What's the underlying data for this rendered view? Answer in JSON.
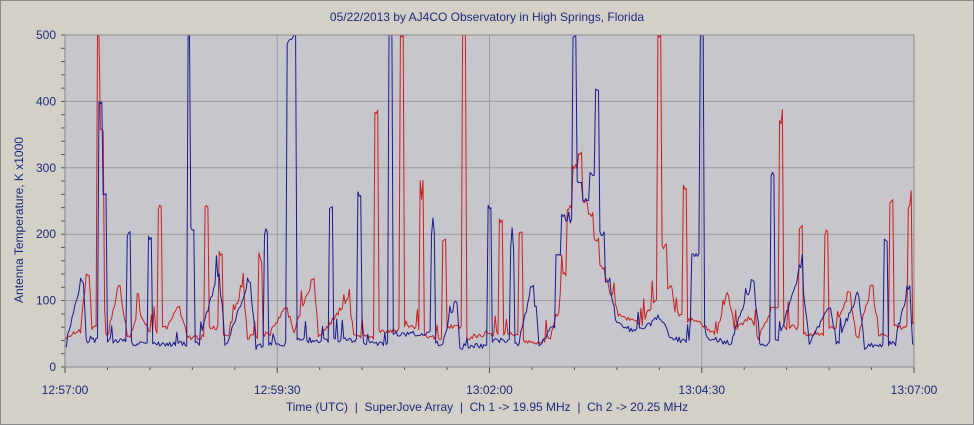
{
  "chart_data": {
    "type": "line",
    "title": "05/22/2013  by  AJ4CO Observatory  in  High Springs, Florida",
    "xlabel": "Time (UTC)  |  SuperJove Array  |  Ch 1 -> 19.95 MHz  |  Ch 2 -> 20.25 MHz",
    "ylabel": "Antenna Temperature, K x1000",
    "x_tick_labels": [
      "12:57:00",
      "12:59:30",
      "13:02:00",
      "13:04:30",
      "13:07:00"
    ],
    "y_tick_labels": [
      "0",
      "100",
      "200",
      "300",
      "400",
      "500"
    ],
    "xlim": [
      "12:57:00",
      "13:07:00"
    ],
    "ylim": [
      0,
      500
    ],
    "grid": true,
    "background_color": "#c6c6cc",
    "grid_color": "#9a9a9a",
    "series": [
      {
        "color": "#c62020",
        "baseline": 40,
        "points": [
          [
            "12:57:00",
            45
          ],
          [
            "12:57:10",
            55
          ],
          [
            "12:57:16",
            140
          ],
          [
            "12:57:20",
            60
          ],
          [
            "12:57:24",
            500
          ],
          [
            "12:57:26",
            355
          ],
          [
            "12:57:30",
            50
          ],
          [
            "12:57:38",
            120
          ],
          [
            "12:57:45",
            45
          ],
          [
            "12:57:52",
            80
          ],
          [
            "12:58:00",
            55
          ],
          [
            "12:58:07",
            240
          ],
          [
            "12:58:12",
            60
          ],
          [
            "12:58:20",
            90
          ],
          [
            "12:58:27",
            45
          ],
          [
            "12:58:40",
            240
          ],
          [
            "12:58:44",
            60
          ],
          [
            "12:58:50",
            170
          ],
          [
            "12:58:55",
            50
          ],
          [
            "12:59:05",
            120
          ],
          [
            "12:59:10",
            45
          ],
          [
            "12:59:18",
            160
          ],
          [
            "12:59:24",
            50
          ],
          [
            "12:59:36",
            90
          ],
          [
            "12:59:42",
            55
          ],
          [
            "12:59:55",
            130
          ],
          [
            "13:00:00",
            45
          ],
          [
            "13:00:20",
            100
          ],
          [
            "13:00:25",
            45
          ],
          [
            "13:00:40",
            385
          ],
          [
            "13:00:44",
            55
          ],
          [
            "13:00:58",
            500
          ],
          [
            "13:01:02",
            60
          ],
          [
            "13:01:12",
            250
          ],
          [
            "13:01:18",
            45
          ],
          [
            "13:01:28",
            190
          ],
          [
            "13:01:34",
            60
          ],
          [
            "13:01:42",
            500
          ],
          [
            "13:01:46",
            45
          ],
          [
            "13:01:58",
            50
          ],
          [
            "13:02:08",
            220
          ],
          [
            "13:02:12",
            50
          ],
          [
            "13:02:22",
            200
          ],
          [
            "13:02:28",
            40
          ],
          [
            "13:02:35",
            35
          ],
          [
            "13:02:42",
            45
          ],
          [
            "13:02:48",
            80
          ],
          [
            "13:02:52",
            140
          ],
          [
            "13:02:56",
            240
          ],
          [
            "13:03:00",
            300
          ],
          [
            "13:03:04",
            320
          ],
          [
            "13:03:08",
            250
          ],
          [
            "13:03:12",
            230
          ],
          [
            "13:03:16",
            190
          ],
          [
            "13:03:20",
            150
          ],
          [
            "13:03:26",
            110
          ],
          [
            "13:03:32",
            80
          ],
          [
            "13:03:40",
            70
          ],
          [
            "13:03:48",
            65
          ],
          [
            "13:03:56",
            100
          ],
          [
            "13:04:00",
            500
          ],
          [
            "13:04:04",
            180
          ],
          [
            "13:04:08",
            120
          ],
          [
            "13:04:12",
            80
          ],
          [
            "13:04:18",
            270
          ],
          [
            "13:04:24",
            70
          ],
          [
            "13:04:32",
            60
          ],
          [
            "13:04:40",
            50
          ],
          [
            "13:04:48",
            110
          ],
          [
            "13:04:54",
            55
          ],
          [
            "13:05:04",
            75
          ],
          [
            "13:05:10",
            45
          ],
          [
            "13:05:20",
            90
          ],
          [
            "13:05:26",
            370
          ],
          [
            "13:05:30",
            60
          ],
          [
            "13:05:40",
            210
          ],
          [
            "13:05:46",
            50
          ],
          [
            "13:05:58",
            200
          ],
          [
            "13:06:04",
            60
          ],
          [
            "13:06:14",
            110
          ],
          [
            "13:06:20",
            45
          ],
          [
            "13:06:30",
            120
          ],
          [
            "13:06:36",
            50
          ],
          [
            "13:06:44",
            250
          ],
          [
            "13:06:50",
            60
          ],
          [
            "13:06:57",
            240
          ],
          [
            "13:07:00",
            65
          ]
        ]
      },
      {
        "color": "#1a1a8c",
        "baseline": 32,
        "points": [
          [
            "12:57:00",
            32
          ],
          [
            "12:57:12",
            130
          ],
          [
            "12:57:16",
            40
          ],
          [
            "12:57:25",
            400
          ],
          [
            "12:57:28",
            260
          ],
          [
            "12:57:32",
            40
          ],
          [
            "12:57:45",
            200
          ],
          [
            "12:57:50",
            35
          ],
          [
            "12:58:00",
            195
          ],
          [
            "12:58:06",
            35
          ],
          [
            "12:58:28",
            500
          ],
          [
            "12:58:30",
            210
          ],
          [
            "12:58:34",
            35
          ],
          [
            "12:58:48",
            140
          ],
          [
            "12:58:54",
            35
          ],
          [
            "12:59:10",
            130
          ],
          [
            "12:59:16",
            30
          ],
          [
            "12:59:22",
            200
          ],
          [
            "12:59:28",
            35
          ],
          [
            "12:59:38",
            490
          ],
          [
            "12:59:42",
            500
          ],
          [
            "12:59:46",
            40
          ],
          [
            "13:00:08",
            240
          ],
          [
            "13:00:12",
            40
          ],
          [
            "13:00:28",
            260
          ],
          [
            "13:00:34",
            35
          ],
          [
            "13:00:50",
            500
          ],
          [
            "13:00:54",
            50
          ],
          [
            "13:01:20",
            200
          ],
          [
            "13:01:26",
            35
          ],
          [
            "13:01:36",
            100
          ],
          [
            "13:01:40",
            30
          ],
          [
            "13:02:00",
            240
          ],
          [
            "13:02:04",
            40
          ],
          [
            "13:02:16",
            180
          ],
          [
            "13:02:20",
            35
          ],
          [
            "13:02:30",
            120
          ],
          [
            "13:02:36",
            35
          ],
          [
            "13:02:44",
            60
          ],
          [
            "13:02:48",
            170
          ],
          [
            "13:02:52",
            230
          ],
          [
            "13:02:56",
            220
          ],
          [
            "13:03:00",
            500
          ],
          [
            "13:03:04",
            280
          ],
          [
            "13:03:08",
            250
          ],
          [
            "13:03:12",
            290
          ],
          [
            "13:03:16",
            415
          ],
          [
            "13:03:20",
            200
          ],
          [
            "13:03:24",
            130
          ],
          [
            "13:03:30",
            70
          ],
          [
            "13:03:40",
            55
          ],
          [
            "13:03:50",
            60
          ],
          [
            "13:04:00",
            75
          ],
          [
            "13:04:08",
            45
          ],
          [
            "13:04:16",
            40
          ],
          [
            "13:04:24",
            170
          ],
          [
            "13:04:30",
            500
          ],
          [
            "13:04:34",
            45
          ],
          [
            "13:04:50",
            35
          ],
          [
            "13:05:06",
            130
          ],
          [
            "13:05:12",
            35
          ],
          [
            "13:05:20",
            290
          ],
          [
            "13:05:24",
            40
          ],
          [
            "13:05:40",
            150
          ],
          [
            "13:05:46",
            35
          ],
          [
            "13:06:00",
            90
          ],
          [
            "13:06:06",
            35
          ],
          [
            "13:06:20",
            110
          ],
          [
            "13:06:26",
            30
          ],
          [
            "13:06:40",
            190
          ],
          [
            "13:06:46",
            35
          ],
          [
            "13:06:56",
            120
          ],
          [
            "13:07:00",
            35
          ]
        ]
      }
    ]
  }
}
